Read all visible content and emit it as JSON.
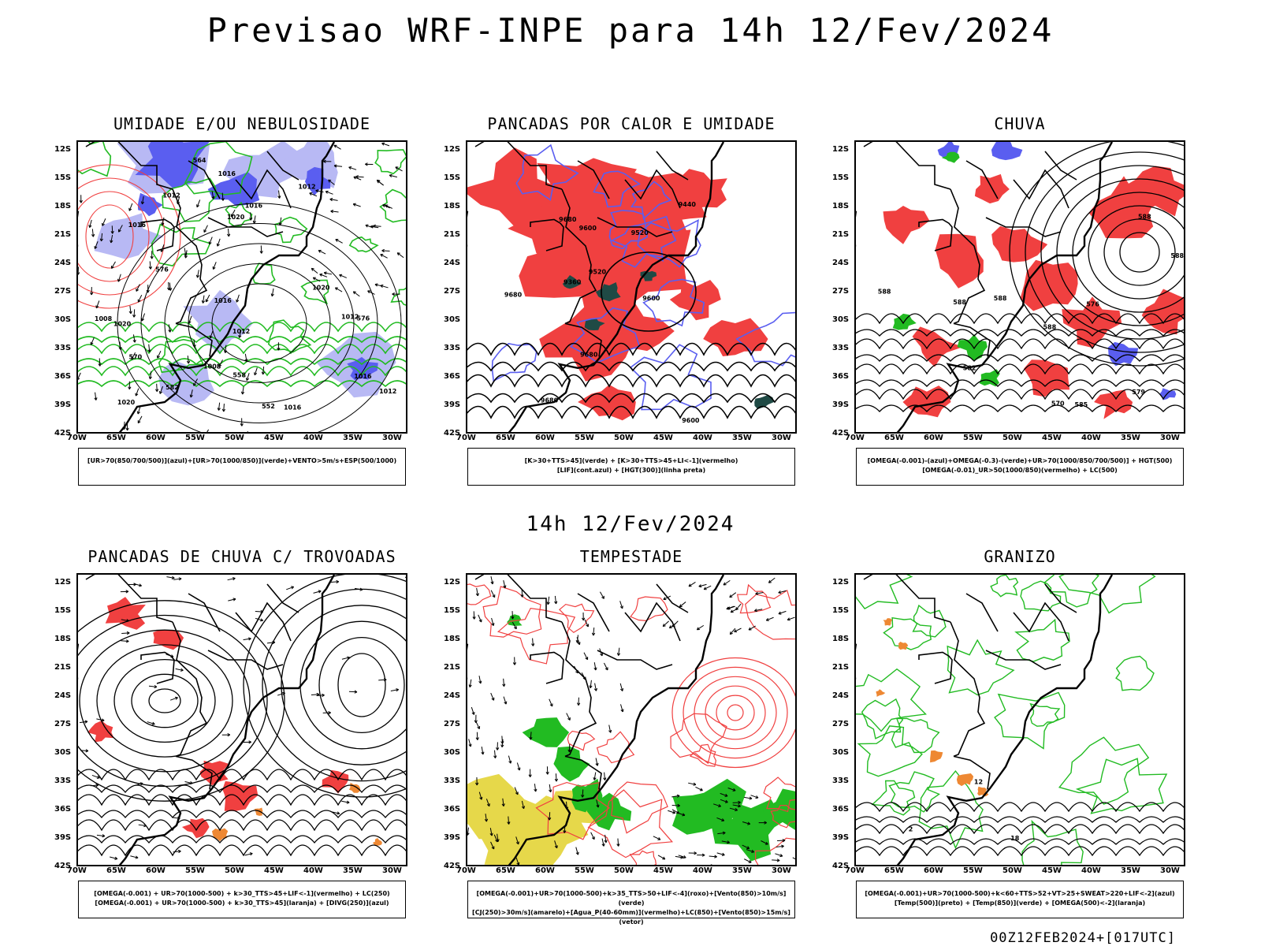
{
  "main_title": "Previsao WRF-INPE  para 14h 12/Fev/2024",
  "mid_title": "14h 12/Fev/2024",
  "footer_stamp": "00Z12FEB2024+[017UTC]",
  "lat_labels": [
    "12S",
    "15S",
    "18S",
    "21S",
    "24S",
    "27S",
    "30S",
    "33S",
    "36S",
    "39S",
    "42S"
  ],
  "lon_labels": [
    "70W",
    "65W",
    "60W",
    "55W",
    "50W",
    "45W",
    "40W",
    "35W",
    "30W"
  ],
  "colors": {
    "blue": "#5a5ef0",
    "lightblue": "#b8b9f4",
    "green": "#22bb22",
    "red": "#f04040",
    "darkgreen": "#1f4a45",
    "yellow": "#e6d84a",
    "orange": "#ee8833",
    "black": "#000000"
  },
  "panels": [
    {
      "title": "UMIDADE E/OU NEBULOSIDADE",
      "legend": [
        "[UR>70(850/700/500)](azul)+[UR>70(1000/850)](verde)+VENTO>5m/s+ESP(500/1000)"
      ],
      "contour_labels": [
        "1016",
        "1012",
        "1012",
        "1016",
        "1016",
        "1020",
        "1012",
        "1008",
        "1016",
        "1012",
        "1020",
        "1012",
        "1016",
        "1020",
        "1016",
        "1008",
        "1020",
        "576",
        "576",
        "570",
        "564",
        "582",
        "558",
        "552"
      ]
    },
    {
      "title": "PANCADAS POR CALOR E UMIDADE",
      "legend": [
        "[K>30+TTS>45](verde) + [K>30+TTS>45+LI<-1](vermelho)",
        "[LIF](cont.azul) + [HGT(300)](linha preta)"
      ],
      "contour_labels": [
        "9680",
        "9680",
        "9600",
        "9680",
        "9680",
        "9600",
        "9520",
        "9440",
        "9360",
        "9520",
        "9600"
      ]
    },
    {
      "title": "CHUVA",
      "legend": [
        "[OMEGA(-0.001)-(azul)+OMEGA(-0.3)-(verde)+UR>70(1000/850/700/500)] + HGT(500)",
        "[OMEGA(-0.01)_UR>50(1000/850)(vermelho) + LC(500)"
      ],
      "contour_labels": [
        "588",
        "588",
        "588",
        "588",
        "588",
        "588",
        "585",
        "582",
        "579",
        "576",
        "570"
      ]
    },
    {
      "title": "PANCADAS DE CHUVA C/ TROVOADAS",
      "legend": [
        "[OMEGA(-0.001) + UR>70(1000-500) + k>30_TTS>45+LIF<-1](vermelho) + LC(250)",
        "[OMEGA(-0.001) + UR>70(1000-500) + k>30_TTS>45](laranja) + [DIVG(250)](azul)"
      ],
      "contour_labels": []
    },
    {
      "title": "TEMPESTADE",
      "legend": [
        "[OMEGA(-0.001)+UR>70(1000-500)+k>35_TTS>50+LIF<-4](roxo)+[Vento(850)>10m/s](verde)",
        "[CJ(250)>30m/s](amarelo)+[Agua_P(40-60mm)](vermelho)+LC(850)+[Vento(850)>15m/s](vetor)"
      ],
      "contour_labels": []
    },
    {
      "title": "GRANIZO",
      "legend": [
        "[OMEGA(-0.001)+UR>70(1000-500)+k<60+TTS>52+VT>25+SWEAT>220+LIF<-2](azul)",
        "[Temp(500)](preto) + [Temp(850)](verde) + [OMEGA(500)<-2](laranja)"
      ],
      "contour_labels": [
        "12",
        "18",
        "2"
      ]
    }
  ]
}
